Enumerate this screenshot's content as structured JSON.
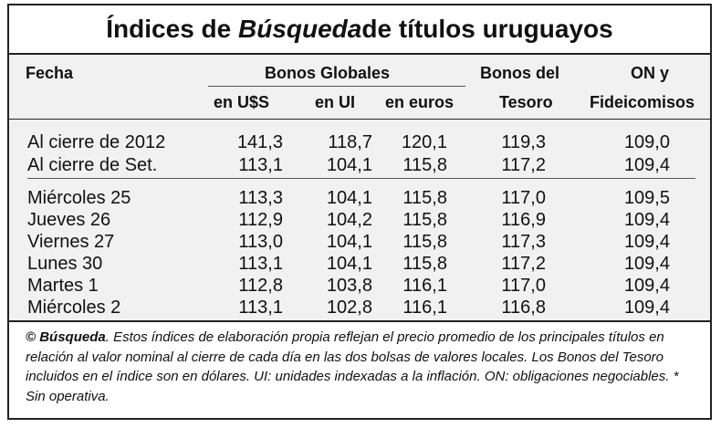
{
  "title": {
    "before": "Índices de ",
    "emph": "Búsqueda",
    "after": " de títulos uruguayos"
  },
  "headers": {
    "fecha": "Fecha",
    "bonos_globales": "Bonos Globales",
    "usd": "en U$S",
    "ui": "en UI",
    "euros": "en euros",
    "tesoro_1": "Bonos del",
    "tesoro_2": "Tesoro",
    "on_1": "ON y",
    "on_2": "Fideicomisos"
  },
  "rows": [
    {
      "label": "Al cierre de 2012",
      "usd": "141,3",
      "ui": "118,7",
      "euros": "120,1",
      "tesoro": "119,3",
      "on": "109,0"
    },
    {
      "label": "Al cierre de Set.",
      "usd": "113,1",
      "ui": "104,1",
      "euros": "115,8",
      "tesoro": "117,2",
      "on": "109,4"
    },
    {
      "label": "Miércoles 25",
      "usd": "113,3",
      "ui": "104,1",
      "euros": "115,8",
      "tesoro": "117,0",
      "on": "109,5"
    },
    {
      "label": "Jueves 26",
      "usd": "112,9",
      "ui": "104,2",
      "euros": "115,8",
      "tesoro": "116,9",
      "on": "109,4"
    },
    {
      "label": "Viernes 27",
      "usd": "113,0",
      "ui": "104,1",
      "euros": "115,8",
      "tesoro": "117,3",
      "on": "109,4"
    },
    {
      "label": "Lunes 30",
      "usd": "113,1",
      "ui": "104,1",
      "euros": "115,8",
      "tesoro": "117,2",
      "on": "109,4"
    },
    {
      "label": "Martes 1",
      "usd": "112,8",
      "ui": "103,8",
      "euros": "116,1",
      "tesoro": "117,0",
      "on": "109,4"
    },
    {
      "label": "Miércoles 2",
      "usd": "113,1",
      "ui": "102,8",
      "euros": "116,1",
      "tesoro": "116,8",
      "on": "109,4"
    }
  ],
  "note": {
    "lead": "© Búsqueda",
    "text": ". Estos índices de elaboración propia reflejan el precio promedio de los principales títulos en relación al valor nominal al cierre de cada día en las dos bolsas de valores locales. Los Bonos del Tesoro incluidos en el índice son en dólares. UI: unidades indexadas a la inflación. ON: obligaciones negociables. * Sin operativa."
  }
}
